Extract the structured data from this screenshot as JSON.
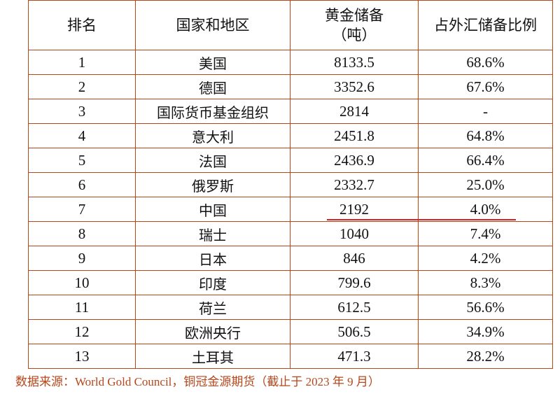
{
  "table": {
    "headers": {
      "rank": "排名",
      "country": "国家和地区",
      "reserve_line1": "黄金储备",
      "reserve_line2": "（吨）",
      "ratio": "占外汇储备比例"
    },
    "rows": [
      {
        "rank": "1",
        "country": "美国",
        "reserve": "8133.5",
        "ratio": "68.6%"
      },
      {
        "rank": "2",
        "country": "德国",
        "reserve": "3352.6",
        "ratio": "67.6%"
      },
      {
        "rank": "3",
        "country": "国际货币基金组织",
        "reserve": "2814",
        "ratio": "-"
      },
      {
        "rank": "4",
        "country": "意大利",
        "reserve": "2451.8",
        "ratio": "64.8%"
      },
      {
        "rank": "5",
        "country": "法国",
        "reserve": "2436.9",
        "ratio": "66.4%"
      },
      {
        "rank": "6",
        "country": "俄罗斯",
        "reserve": "2332.7",
        "ratio": "25.0%"
      },
      {
        "rank": "7",
        "country": "中国",
        "reserve": "2192",
        "ratio": "4.0%"
      },
      {
        "rank": "8",
        "country": "瑞士",
        "reserve": "1040",
        "ratio": "7.4%"
      },
      {
        "rank": "9",
        "country": "日本",
        "reserve": "846",
        "ratio": "4.2%"
      },
      {
        "rank": "10",
        "country": "印度",
        "reserve": "799.6",
        "ratio": "8.3%"
      },
      {
        "rank": "11",
        "country": "荷兰",
        "reserve": "612.5",
        "ratio": "56.6%"
      },
      {
        "rank": "12",
        "country": "欧洲央行",
        "reserve": "506.5",
        "ratio": "34.9%"
      },
      {
        "rank": "13",
        "country": "土耳其",
        "reserve": "471.3",
        "ratio": "28.2%"
      }
    ]
  },
  "source_note": "数据来源：World Gold Council，铜冠金源期货（截止于 2023 年 9 月）",
  "colors": {
    "border": "#b8461a",
    "highlight_underline": "#e02020",
    "source_text": "#b8461a"
  }
}
